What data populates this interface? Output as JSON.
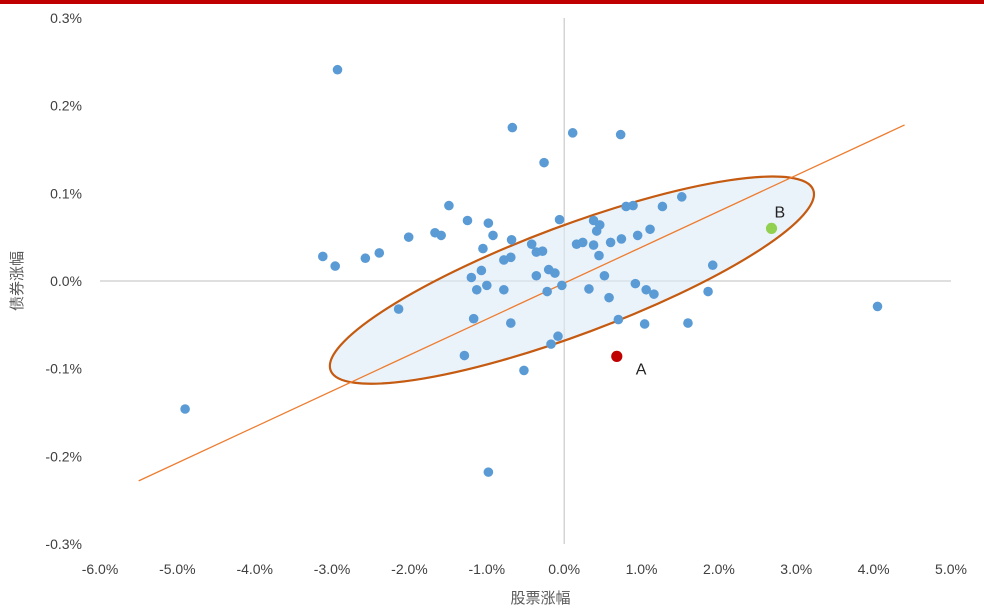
{
  "colors": {
    "top_rule": "#c00000",
    "points": "#5b9bd5",
    "trend_line": "#ed7d31",
    "ellipse_stroke": "#c55a11",
    "ellipse_fill": "#deebf7",
    "point_a": "#c00000",
    "point_b": "#92d050",
    "axis_lines": "#bfbfbf"
  },
  "chart_data": {
    "type": "scatter",
    "xlabel": "股票涨幅",
    "ylabel": "债券涨幅",
    "xlim": [
      -6.0,
      5.0
    ],
    "ylim": [
      -0.3,
      0.3
    ],
    "x_ticks": [
      "-6.0%",
      "-5.0%",
      "-4.0%",
      "-3.0%",
      "-2.0%",
      "-1.0%",
      "0.0%",
      "1.0%",
      "2.0%",
      "3.0%",
      "4.0%",
      "5.0%"
    ],
    "y_ticks": [
      "0.3%",
      "0.2%",
      "0.1%",
      "0.0%",
      "-0.1%",
      "-0.2%",
      "-0.3%"
    ],
    "unit": "%",
    "points": [
      {
        "x": -4.9,
        "y": -0.146
      },
      {
        "x": -2.93,
        "y": 0.241
      },
      {
        "x": -3.12,
        "y": 0.028
      },
      {
        "x": -2.96,
        "y": 0.017
      },
      {
        "x": -2.57,
        "y": 0.026
      },
      {
        "x": -2.39,
        "y": 0.032
      },
      {
        "x": -2.14,
        "y": -0.032
      },
      {
        "x": -2.01,
        "y": 0.05
      },
      {
        "x": -1.67,
        "y": 0.055
      },
      {
        "x": -1.59,
        "y": 0.052
      },
      {
        "x": -1.49,
        "y": 0.086
      },
      {
        "x": -1.25,
        "y": 0.069
      },
      {
        "x": -1.29,
        "y": -0.085
      },
      {
        "x": -1.2,
        "y": 0.004
      },
      {
        "x": -1.17,
        "y": -0.043
      },
      {
        "x": -1.13,
        "y": -0.01
      },
      {
        "x": -1.07,
        "y": 0.012
      },
      {
        "x": -1.05,
        "y": 0.037
      },
      {
        "x": -1.0,
        "y": -0.005
      },
      {
        "x": -0.98,
        "y": 0.066
      },
      {
        "x": -0.92,
        "y": 0.052
      },
      {
        "x": -0.98,
        "y": -0.218
      },
      {
        "x": -0.78,
        "y": -0.01
      },
      {
        "x": -0.78,
        "y": 0.024
      },
      {
        "x": -0.69,
        "y": 0.027
      },
      {
        "x": -0.68,
        "y": 0.047
      },
      {
        "x": -0.69,
        "y": -0.048
      },
      {
        "x": -0.67,
        "y": 0.175
      },
      {
        "x": -0.52,
        "y": -0.102
      },
      {
        "x": -0.42,
        "y": 0.042
      },
      {
        "x": -0.36,
        "y": 0.033
      },
      {
        "x": -0.36,
        "y": 0.006
      },
      {
        "x": -0.28,
        "y": 0.034
      },
      {
        "x": -0.26,
        "y": 0.135
      },
      {
        "x": -0.22,
        "y": -0.012
      },
      {
        "x": -0.2,
        "y": 0.013
      },
      {
        "x": -0.17,
        "y": -0.072
      },
      {
        "x": -0.12,
        "y": 0.009
      },
      {
        "x": -0.08,
        "y": -0.063
      },
      {
        "x": -0.06,
        "y": 0.07
      },
      {
        "x": -0.03,
        "y": -0.005
      },
      {
        "x": 0.11,
        "y": 0.169
      },
      {
        "x": 0.16,
        "y": 0.042
      },
      {
        "x": 0.24,
        "y": 0.044
      },
      {
        "x": 0.32,
        "y": -0.009
      },
      {
        "x": 0.38,
        "y": 0.041
      },
      {
        "x": 0.38,
        "y": 0.069
      },
      {
        "x": 0.42,
        "y": 0.057
      },
      {
        "x": 0.45,
        "y": 0.029
      },
      {
        "x": 0.46,
        "y": 0.064
      },
      {
        "x": 0.52,
        "y": 0.006
      },
      {
        "x": 0.58,
        "y": -0.019
      },
      {
        "x": 0.6,
        "y": 0.044
      },
      {
        "x": 0.7,
        "y": -0.044
      },
      {
        "x": 0.74,
        "y": 0.048
      },
      {
        "x": 0.73,
        "y": 0.167
      },
      {
        "x": 0.8,
        "y": 0.085
      },
      {
        "x": 0.89,
        "y": 0.086
      },
      {
        "x": 0.92,
        "y": -0.003
      },
      {
        "x": 0.95,
        "y": 0.052
      },
      {
        "x": 1.04,
        "y": -0.049
      },
      {
        "x": 1.06,
        "y": -0.01
      },
      {
        "x": 1.11,
        "y": 0.059
      },
      {
        "x": 1.16,
        "y": -0.015
      },
      {
        "x": 1.27,
        "y": 0.085
      },
      {
        "x": 1.52,
        "y": 0.096
      },
      {
        "x": 1.6,
        "y": -0.048
      },
      {
        "x": 1.86,
        "y": -0.012
      },
      {
        "x": 1.92,
        "y": 0.018
      },
      {
        "x": 4.05,
        "y": -0.029
      }
    ],
    "highlights": [
      {
        "label": "A",
        "x": 0.68,
        "y": -0.086
      },
      {
        "label": "B",
        "x": 2.68,
        "y": 0.06
      }
    ],
    "trend_line": {
      "x": [
        -5.5,
        4.4
      ],
      "y": [
        -0.228,
        0.178
      ]
    },
    "ellipse": {
      "cx": 0.1,
      "cy": 0.001,
      "rx": 3.33,
      "ry": 0.062,
      "angle_deg": -20.5
    },
    "grid": false,
    "legend": "none"
  }
}
